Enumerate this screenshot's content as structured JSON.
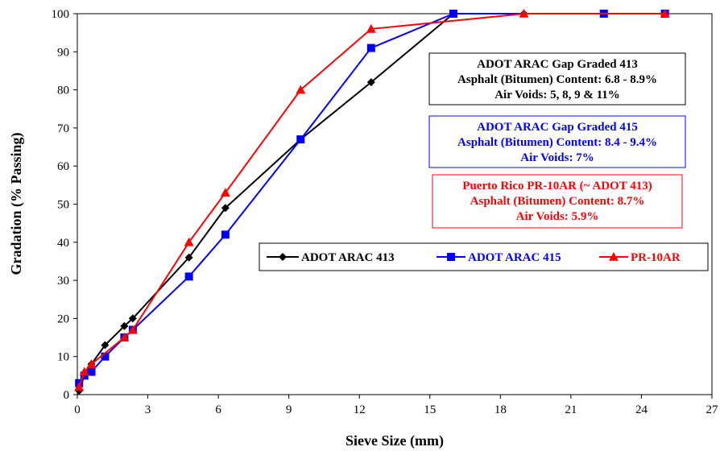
{
  "chart_data": {
    "type": "line",
    "title": "",
    "xlabel": "Sieve Size (mm)",
    "ylabel": "Gradation (% Passing)",
    "xlim": [
      0,
      27
    ],
    "ylim": [
      0,
      100
    ],
    "xticks": [
      0,
      3,
      6,
      9,
      12,
      15,
      18,
      21,
      24,
      27
    ],
    "yticks": [
      0,
      10,
      20,
      30,
      40,
      50,
      60,
      70,
      80,
      90,
      100
    ],
    "grid": false,
    "legend_position": "center-right",
    "series": [
      {
        "name": "ADOT ARAC 413",
        "color": "#000000",
        "marker": "diamond",
        "x": [
          0.075,
          0.3,
          0.6,
          1.18,
          2.0,
          2.36,
          4.75,
          6.3,
          9.5,
          12.5,
          16.0,
          19.0,
          22.4,
          25.0
        ],
        "y": [
          1,
          5,
          8,
          13,
          18,
          20,
          36,
          49,
          67,
          82,
          100,
          100,
          100,
          100
        ]
      },
      {
        "name": "ADOT ARAC 415",
        "color": "#0000ff",
        "marker": "square",
        "x": [
          0.075,
          0.3,
          0.6,
          1.18,
          2.0,
          2.36,
          4.75,
          6.3,
          9.5,
          12.5,
          16.0,
          22.4,
          25.0
        ],
        "y": [
          3,
          5,
          6,
          10,
          15,
          17,
          31,
          42,
          67,
          91,
          100,
          100,
          100
        ]
      },
      {
        "name": "PR-10AR",
        "color": "#ff0000",
        "marker": "triangle",
        "x": [
          0.075,
          0.3,
          0.6,
          2.0,
          2.36,
          4.75,
          6.3,
          9.5,
          12.5,
          19.0,
          25.0
        ],
        "y": [
          2,
          6,
          8,
          15,
          17,
          40,
          53,
          80,
          96,
          100,
          100
        ]
      }
    ],
    "annotations": [
      {
        "lines": [
          "ADOT ARAC Gap Graded 413",
          "Asphalt (Bitumen) Content: 6.8 - 8.9%",
          "Air Voids: 5, 8, 9 & 11%"
        ],
        "color": "#000000"
      },
      {
        "lines": [
          "ADOT ARAC Gap Graded 415",
          "Asphalt (Bitumen) Content: 8.4 - 9.4%",
          "Air Voids: 7%"
        ],
        "color": "#0000ff"
      },
      {
        "lines": [
          "Puerto Rico PR-10AR (~ ADOT 413)",
          "Asphalt (Bitumen) Content: 8.7%",
          "Air Voids: 5.9%"
        ],
        "color": "#ff0000"
      }
    ]
  }
}
